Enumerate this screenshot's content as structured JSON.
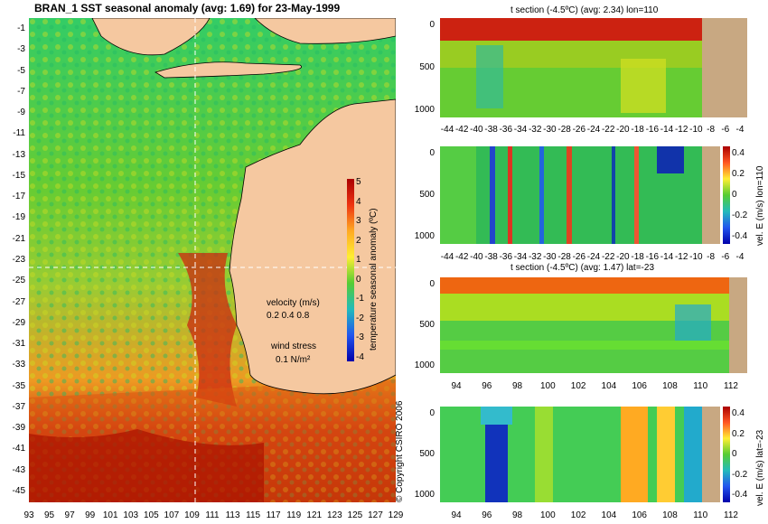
{
  "map": {
    "title": "BRAN_1  SST seasonal anomaly  (avg: 1.69) for 23-May-1999",
    "y_ticks": [
      "-1",
      "-3",
      "-5",
      "-7",
      "-9",
      "-11",
      "-13",
      "-15",
      "-17",
      "-19",
      "-21",
      "-23",
      "-25",
      "-27",
      "-29",
      "-31",
      "-33",
      "-35",
      "-37",
      "-39",
      "-41",
      "-43",
      "-45"
    ],
    "x_ticks": [
      "93",
      "95",
      "97",
      "99",
      "101",
      "103",
      "105",
      "107",
      "109",
      "111",
      "113",
      "115",
      "117",
      "119",
      "121",
      "123",
      "125",
      "127",
      "129"
    ],
    "colorbar_ticks": [
      "5",
      "4",
      "3",
      "2",
      "1",
      "0",
      "-1",
      "-2",
      "-3",
      "-4"
    ],
    "colorbar_label": "temperature seasonal anomaly (ºC)",
    "velocity_label": "velocity (m/s)",
    "velocity_scale": "0.2 0.4 0.8",
    "wind_label": "wind stress",
    "wind_scale": "0.1 N/m²",
    "copyright": "© Copyright CSIRO 2006"
  },
  "panel1": {
    "title": "t section (-4.5ºC) (avg: 2.34) lon=110",
    "y_ticks": [
      "0",
      "500",
      "1000"
    ],
    "x_ticks": [
      "-44",
      "-42",
      "-40",
      "-38",
      "-36",
      "-34",
      "-32",
      "-30",
      "-28",
      "-26",
      "-24",
      "-22",
      "-20",
      "-18",
      "-16",
      "-14",
      "-12",
      "-10",
      "-8",
      "-6",
      "-4"
    ]
  },
  "panel2": {
    "y_ticks": [
      "0",
      "500",
      "1000"
    ],
    "x_ticks": [
      "-44",
      "-42",
      "-40",
      "-38",
      "-36",
      "-34",
      "-32",
      "-30",
      "-28",
      "-26",
      "-24",
      "-22",
      "-20",
      "-18",
      "-16",
      "-14",
      "-12",
      "-10",
      "-8",
      "-6",
      "-4"
    ],
    "colorbar_ticks": [
      "0.4",
      "0.2",
      "0",
      "-0.2",
      "-0.4"
    ],
    "colorbar_label": "vel. E (m/s) lon=110"
  },
  "panel3": {
    "title": "t section (-4.5ºC) (avg: 1.47) lat=-23",
    "y_ticks": [
      "0",
      "500",
      "1000"
    ],
    "x_ticks": [
      "94",
      "96",
      "98",
      "100",
      "102",
      "104",
      "106",
      "108",
      "110",
      "112"
    ]
  },
  "panel4": {
    "y_ticks": [
      "0",
      "500",
      "1000"
    ],
    "x_ticks": [
      "94",
      "96",
      "98",
      "100",
      "102",
      "104",
      "106",
      "108",
      "110",
      "112"
    ],
    "colorbar_ticks": [
      "0.4",
      "0.2",
      "0",
      "-0.2",
      "-0.4"
    ],
    "colorbar_label": "vel. E (m/s) lat=-23"
  }
}
